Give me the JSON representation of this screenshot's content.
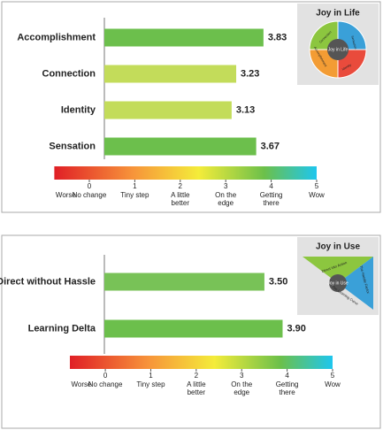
{
  "chart_data": [
    {
      "type": "bar",
      "orientation": "horizontal",
      "title": "Joy in Life",
      "icon_labels": [
        "Joy in Life",
        "Connection",
        "Accomplishment",
        "Identity",
        "Sensation"
      ],
      "categories": [
        "Accomplishment",
        "Connection",
        "Identity",
        "Sensation"
      ],
      "values": [
        3.83,
        3.23,
        3.13,
        3.67
      ],
      "value_labels": [
        "3.83",
        "3.23",
        "3.13",
        "3.67"
      ],
      "colors": [
        "#6cbf4c",
        "#c3dc5a",
        "#c3dc5a",
        "#6cbf4c"
      ],
      "xlim": [
        -0.77,
        5
      ],
      "xticks": [
        0,
        1,
        2,
        3,
        4,
        5
      ],
      "low_label": "Worse",
      "scale_labels": [
        "No change",
        "Tiny step",
        "A little\nbetter",
        "On the\nedge",
        "Getting\nthere",
        "Wow"
      ]
    },
    {
      "type": "bar",
      "orientation": "horizontal",
      "title": "Joy in Use",
      "icon_labels": [
        "Joy in Use",
        "Direct into Action",
        "The Hassle Factor",
        "The Learning Curve"
      ],
      "categories": [
        "Direct without Hassle",
        "Learning Delta"
      ],
      "values": [
        3.5,
        3.9
      ],
      "value_labels": [
        "3.50",
        "3.90"
      ],
      "colors": [
        "#78c257",
        "#6cbf4c"
      ],
      "xlim": [
        -0.78,
        5
      ],
      "xticks": [
        0,
        1,
        2,
        3,
        4,
        5
      ],
      "low_label": "Worse",
      "scale_labels": [
        "No change",
        "Tiny step",
        "A little\nbetter",
        "On the\nedge",
        "Getting\nthere",
        "Wow"
      ]
    }
  ]
}
